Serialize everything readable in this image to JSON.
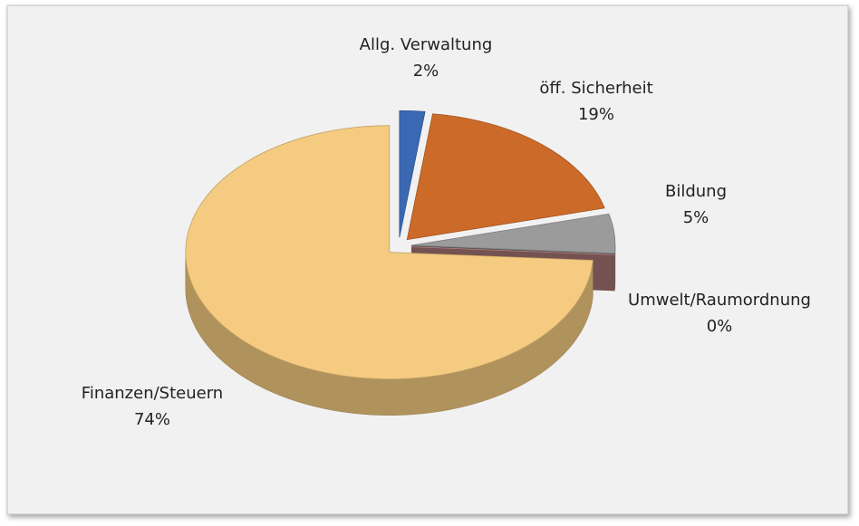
{
  "chart_data": {
    "type": "pie",
    "categories": [
      "Allg. Verwaltung",
      "öff. Sicherheit",
      "Bildung",
      "Umwelt/Raumordnung",
      "Finanzen/Steuern"
    ],
    "values": [
      2,
      19,
      5,
      0,
      74
    ],
    "value_labels": [
      "2%",
      "19%",
      "5%",
      "0%",
      "74%"
    ],
    "colors": [
      "#3b68b3",
      "#cc6a2a",
      "#9b9b9b",
      "#e9a3a3",
      "#f4cb80"
    ]
  }
}
